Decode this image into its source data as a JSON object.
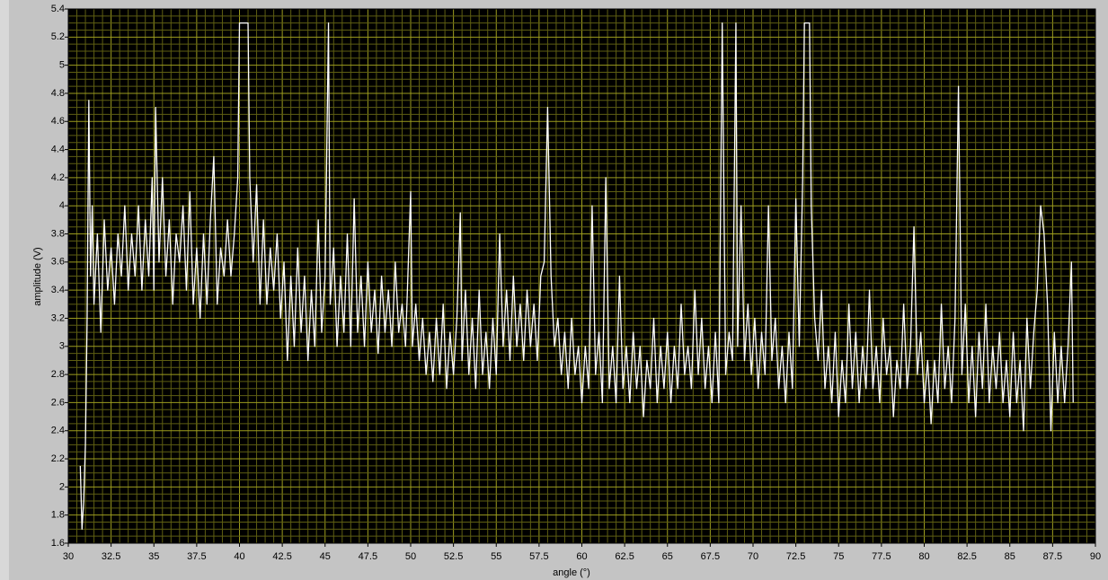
{
  "chart_data": {
    "type": "line",
    "xlabel": "angle (°)",
    "ylabel": "amplitude (V)",
    "xlim": [
      30,
      90
    ],
    "ylim": [
      1.6,
      5.4
    ],
    "xticks": [
      30,
      32.5,
      35,
      37.5,
      40,
      42.5,
      45,
      47.5,
      50,
      52.5,
      55,
      57.5,
      60,
      62.5,
      65,
      67.5,
      70,
      72.5,
      75,
      77.5,
      80,
      82.5,
      85,
      87.5,
      90
    ],
    "yticks": [
      1.6,
      1.8,
      2,
      2.2,
      2.4,
      2.6,
      2.8,
      3,
      3.2,
      3.4,
      3.6,
      3.8,
      4,
      4.2,
      4.4,
      4.6,
      4.8,
      5,
      5.2,
      5.4
    ],
    "grid": true,
    "series": [
      {
        "color": "#ffffff",
        "x": [
          30.7,
          30.8,
          30.9,
          31.0,
          31.1,
          31.2,
          31.3,
          31.4,
          31.5,
          31.7,
          31.9,
          32.1,
          32.3,
          32.5,
          32.7,
          32.9,
          33.1,
          33.3,
          33.5,
          33.7,
          33.9,
          34.1,
          34.3,
          34.5,
          34.7,
          34.9,
          35.0,
          35.1,
          35.3,
          35.5,
          35.7,
          35.9,
          36.1,
          36.3,
          36.5,
          36.7,
          36.9,
          37.1,
          37.3,
          37.5,
          37.7,
          37.9,
          38.1,
          38.3,
          38.5,
          38.7,
          38.9,
          39.1,
          39.3,
          39.5,
          39.7,
          39.9,
          40.0,
          40.5,
          40.6,
          40.8,
          41.0,
          41.2,
          41.4,
          41.6,
          41.8,
          42.0,
          42.2,
          42.4,
          42.6,
          42.8,
          43.0,
          43.2,
          43.4,
          43.6,
          43.8,
          44.0,
          44.2,
          44.4,
          44.6,
          44.8,
          45.0,
          45.2,
          45.3,
          45.5,
          45.7,
          45.9,
          46.1,
          46.3,
          46.5,
          46.7,
          46.9,
          47.1,
          47.3,
          47.5,
          47.7,
          47.9,
          48.1,
          48.3,
          48.5,
          48.7,
          48.9,
          49.1,
          49.3,
          49.5,
          49.7,
          50.0,
          50.1,
          50.3,
          50.5,
          50.7,
          50.9,
          51.1,
          51.3,
          51.5,
          51.7,
          51.9,
          52.1,
          52.3,
          52.5,
          52.7,
          52.9,
          53.0,
          53.2,
          53.4,
          53.6,
          53.8,
          54.0,
          54.2,
          54.4,
          54.6,
          54.8,
          55.0,
          55.2,
          55.4,
          55.6,
          55.8,
          56.0,
          56.2,
          56.4,
          56.6,
          56.8,
          57.0,
          57.2,
          57.4,
          57.6,
          57.8,
          58.0,
          58.2,
          58.4,
          58.6,
          58.8,
          59.0,
          59.2,
          59.4,
          59.6,
          59.8,
          60.0,
          60.2,
          60.4,
          60.6,
          60.8,
          61.0,
          61.2,
          61.4,
          61.6,
          61.8,
          62.0,
          62.2,
          62.4,
          62.6,
          62.8,
          63.0,
          63.2,
          63.4,
          63.6,
          63.8,
          64.0,
          64.2,
          64.4,
          64.6,
          64.8,
          65.0,
          65.2,
          65.4,
          65.6,
          65.8,
          66.0,
          66.2,
          66.4,
          66.6,
          66.8,
          67.0,
          67.2,
          67.4,
          67.6,
          67.8,
          68.0,
          68.2,
          68.4,
          68.6,
          68.8,
          69.0,
          69.1,
          69.3,
          69.5,
          69.7,
          69.9,
          70.1,
          70.3,
          70.5,
          70.7,
          70.9,
          71.1,
          71.3,
          71.5,
          71.7,
          71.9,
          72.1,
          72.3,
          72.5,
          72.7,
          72.9,
          73.0,
          73.3,
          73.4,
          73.6,
          73.8,
          74.0,
          74.2,
          74.4,
          74.6,
          74.8,
          75.0,
          75.2,
          75.4,
          75.6,
          75.8,
          76.0,
          76.2,
          76.4,
          76.6,
          76.8,
          77.0,
          77.2,
          77.4,
          77.6,
          77.8,
          78.0,
          78.2,
          78.4,
          78.6,
          78.8,
          79.0,
          79.2,
          79.4,
          79.6,
          79.8,
          80.0,
          80.2,
          80.4,
          80.6,
          80.8,
          81.0,
          81.2,
          81.4,
          81.6,
          81.8,
          82.0,
          82.2,
          82.4,
          82.6,
          82.8,
          83.0,
          83.2,
          83.4,
          83.6,
          83.8,
          84.0,
          84.2,
          84.4,
          84.6,
          84.8,
          85.0,
          85.2,
          85.4,
          85.6,
          85.8,
          86.0,
          86.2,
          86.4,
          86.6,
          86.8,
          87.0,
          87.2,
          87.4,
          87.6,
          87.8,
          88.0,
          88.2,
          88.4,
          88.6,
          88.7
        ],
        "values": [
          2.15,
          1.7,
          1.9,
          2.3,
          3.2,
          4.75,
          3.5,
          4.0,
          3.3,
          3.8,
          3.1,
          3.9,
          3.4,
          3.7,
          3.3,
          3.8,
          3.5,
          4.0,
          3.4,
          3.8,
          3.5,
          4.0,
          3.4,
          3.9,
          3.5,
          4.2,
          3.4,
          4.7,
          3.6,
          4.2,
          3.5,
          3.9,
          3.3,
          3.8,
          3.6,
          4.0,
          3.4,
          4.1,
          3.3,
          3.7,
          3.2,
          3.8,
          3.3,
          3.9,
          4.35,
          3.3,
          3.7,
          3.5,
          3.9,
          3.5,
          3.8,
          4.2,
          5.3,
          5.3,
          4.2,
          3.6,
          4.15,
          3.3,
          3.9,
          3.3,
          3.7,
          3.4,
          3.8,
          3.2,
          3.6,
          2.9,
          3.5,
          3.0,
          3.7,
          3.1,
          3.5,
          2.9,
          3.4,
          3.0,
          3.9,
          3.1,
          3.5,
          5.3,
          3.3,
          3.7,
          3.0,
          3.5,
          3.1,
          3.8,
          3.0,
          4.05,
          3.1,
          3.5,
          3.0,
          3.6,
          3.1,
          3.4,
          2.95,
          3.5,
          3.1,
          3.4,
          3.0,
          3.6,
          3.1,
          3.3,
          3.0,
          4.1,
          3.0,
          3.3,
          2.9,
          3.2,
          2.8,
          3.1,
          2.75,
          3.2,
          2.8,
          3.3,
          2.7,
          3.1,
          2.8,
          3.2,
          3.95,
          2.9,
          3.4,
          2.8,
          3.2,
          2.7,
          3.4,
          2.8,
          3.1,
          2.7,
          3.2,
          2.8,
          3.8,
          3.0,
          3.4,
          2.9,
          3.5,
          3.0,
          3.3,
          2.9,
          3.4,
          3.0,
          3.3,
          2.9,
          3.5,
          3.6,
          4.7,
          3.5,
          3.0,
          3.2,
          2.8,
          3.1,
          2.7,
          3.2,
          2.8,
          3.0,
          2.6,
          3.0,
          2.7,
          4.0,
          2.8,
          3.1,
          2.6,
          4.2,
          2.7,
          3.0,
          2.6,
          3.5,
          2.7,
          3.0,
          2.6,
          3.1,
          2.7,
          3.0,
          2.5,
          2.9,
          2.7,
          3.2,
          2.6,
          3.0,
          2.7,
          3.1,
          2.6,
          3.0,
          2.7,
          3.3,
          2.8,
          3.0,
          2.7,
          3.4,
          2.8,
          3.2,
          2.7,
          3.0,
          2.6,
          3.1,
          2.6,
          5.3,
          2.8,
          3.1,
          2.9,
          5.3,
          3.0,
          4.0,
          2.9,
          3.3,
          2.8,
          3.2,
          2.7,
          3.1,
          2.8,
          4.0,
          2.9,
          3.2,
          2.7,
          3.0,
          2.6,
          3.1,
          2.7,
          4.05,
          3.0,
          4.2,
          5.3,
          5.3,
          4.0,
          3.2,
          2.9,
          3.4,
          2.7,
          3.0,
          2.6,
          3.1,
          2.5,
          2.9,
          2.6,
          3.3,
          2.7,
          3.1,
          2.6,
          3.0,
          2.7,
          3.4,
          2.7,
          3.0,
          2.6,
          3.2,
          2.8,
          3.0,
          2.5,
          2.9,
          2.7,
          3.3,
          2.7,
          3.0,
          3.85,
          2.8,
          3.1,
          2.6,
          2.9,
          2.45,
          2.9,
          2.6,
          3.3,
          2.7,
          3.0,
          2.6,
          3.2,
          4.85,
          2.8,
          3.3,
          2.6,
          3.0,
          2.5,
          3.1,
          2.7,
          3.3,
          2.6,
          3.0,
          2.7,
          3.1,
          2.6,
          2.9,
          2.5,
          3.1,
          2.6,
          2.9,
          2.4,
          3.2,
          2.7,
          3.1,
          3.4,
          4.0,
          3.8,
          3.3,
          2.4,
          3.1,
          2.6,
          3.0,
          2.6,
          3.0,
          3.6,
          2.6
        ]
      }
    ]
  }
}
